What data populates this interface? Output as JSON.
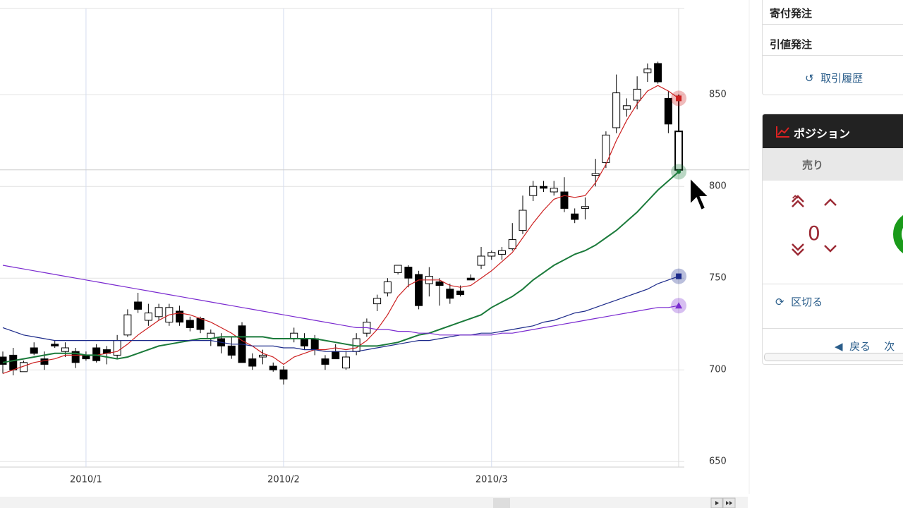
{
  "chart_data": {
    "type": "candlestick",
    "categories": [
      null,
      null,
      null,
      null,
      null,
      null,
      null,
      null,
      "2010/1",
      null,
      null,
      null,
      null,
      null,
      null,
      null,
      null,
      null,
      null,
      null,
      null,
      null,
      null,
      null,
      null,
      null,
      null,
      "2010/2",
      null,
      null,
      null,
      null,
      null,
      null,
      null,
      null,
      null,
      null,
      null,
      null,
      null,
      null,
      null,
      null,
      null,
      null,
      null,
      "2010/3",
      null,
      null,
      null,
      null,
      null,
      null,
      null,
      null,
      null,
      null,
      null,
      null,
      null,
      null,
      null,
      null,
      null,
      null
    ],
    "open": [
      707,
      708,
      699,
      712,
      706,
      714,
      710,
      710,
      708,
      712,
      711,
      708,
      719,
      737,
      727,
      729,
      726,
      732,
      727,
      728,
      717,
      717,
      713,
      724,
      706,
      707,
      702,
      700,
      717,
      717,
      717,
      706,
      710,
      701,
      710,
      720,
      736,
      742,
      753,
      756,
      752,
      747,
      748,
      744,
      743,
      750,
      757,
      762,
      763,
      766,
      776,
      795,
      800,
      797,
      797,
      785,
      788,
      806,
      813,
      832,
      842,
      847,
      862,
      867,
      848,
      809
    ],
    "high": [
      710,
      712,
      705,
      715,
      710,
      716,
      715,
      712,
      710,
      714,
      713,
      719,
      733,
      742,
      736,
      736,
      736,
      735,
      729,
      729,
      722,
      720,
      718,
      726,
      709,
      711,
      704,
      702,
      723,
      720,
      719,
      708,
      714,
      710,
      720,
      728,
      741,
      750,
      757,
      757,
      754,
      756,
      750,
      747,
      746,
      752,
      767,
      765,
      767,
      780,
      795,
      803,
      803,
      803,
      805,
      788,
      794,
      815,
      830,
      861,
      848,
      860,
      867,
      868,
      852,
      850
    ],
    "low": [
      698,
      697,
      699,
      708,
      700,
      712,
      707,
      701,
      705,
      704,
      703,
      706,
      718,
      731,
      724,
      727,
      724,
      724,
      721,
      720,
      713,
      709,
      706,
      704,
      700,
      703,
      699,
      692,
      715,
      711,
      708,
      700,
      706,
      700,
      708,
      718,
      732,
      740,
      752,
      745,
      733,
      740,
      735,
      736,
      740,
      749,
      755,
      760,
      760,
      765,
      774,
      792,
      797,
      795,
      786,
      780,
      782,
      800,
      810,
      829,
      838,
      842,
      857,
      856,
      829,
      808
    ],
    "close": [
      703,
      700,
      704,
      709,
      703,
      713,
      712,
      704,
      706,
      705,
      709,
      716,
      730,
      733,
      731,
      734,
      734,
      726,
      723,
      722,
      720,
      713,
      708,
      704,
      702,
      708,
      700,
      695,
      720,
      713,
      711,
      703,
      706,
      707,
      717,
      726,
      739,
      748,
      757,
      750,
      735,
      751,
      746,
      739,
      741,
      749,
      762,
      764,
      765,
      771,
      787,
      800,
      799,
      799,
      788,
      782,
      789,
      807,
      828,
      851,
      844,
      853,
      864,
      857,
      834,
      830
    ],
    "up_color": "#ffffff",
    "down_color": "#000000",
    "overlays": [
      {
        "color": "#cc1f1f",
        "marker": "square",
        "values": [
          698,
          700,
          702,
          704,
          705,
          706,
          708,
          708,
          708,
          708,
          709,
          710,
          714,
          719,
          723,
          727,
          730,
          731,
          730,
          728,
          726,
          723,
          720,
          716,
          713,
          709,
          707,
          703,
          707,
          709,
          711,
          711,
          712,
          711,
          712,
          716,
          722,
          730,
          740,
          746,
          749,
          749,
          749,
          746,
          745,
          746,
          750,
          754,
          759,
          764,
          772,
          780,
          787,
          793,
          795,
          794,
          795,
          802,
          812,
          825,
          836,
          845,
          852,
          855,
          852,
          848
        ]
      },
      {
        "color": "#1a7a3a",
        "marker": "circle",
        "values": [
          704,
          705,
          706,
          707,
          708,
          709,
          709,
          709,
          708,
          708,
          707,
          706,
          707,
          709,
          711,
          713,
          714,
          715,
          716,
          717,
          717,
          718,
          718,
          718,
          718,
          718,
          717,
          717,
          717,
          717,
          717,
          716,
          715,
          714,
          713,
          713,
          713,
          714,
          715,
          717,
          719,
          720,
          722,
          724,
          726,
          728,
          730,
          734,
          737,
          740,
          744,
          749,
          753,
          757,
          760,
          763,
          765,
          768,
          772,
          776,
          781,
          786,
          792,
          798,
          803,
          808
        ]
      },
      {
        "color": "#1c2a8a",
        "marker": "square",
        "values": [
          723,
          721,
          719,
          718,
          717,
          716,
          716,
          716,
          716,
          716,
          716,
          716,
          716,
          716,
          716,
          716,
          716,
          716,
          716,
          716,
          716,
          715,
          714,
          714,
          713,
          713,
          713,
          712,
          712,
          711,
          711,
          710,
          710,
          710,
          710,
          711,
          712,
          713,
          714,
          715,
          716,
          716,
          717,
          718,
          719,
          719,
          720,
          720,
          721,
          722,
          723,
          724,
          726,
          727,
          729,
          731,
          732,
          734,
          736,
          738,
          740,
          742,
          744,
          747,
          749,
          751
        ]
      },
      {
        "color": "#7a2ad0",
        "marker": "triangle",
        "values": [
          757,
          756,
          755,
          754,
          753,
          752,
          751,
          750,
          749,
          748,
          747,
          746,
          745,
          744,
          743,
          742,
          741,
          740,
          739,
          738,
          737,
          736,
          735,
          734,
          733,
          732,
          731,
          730,
          729,
          728,
          727,
          726,
          725,
          724,
          723,
          723,
          722,
          722,
          721,
          721,
          720,
          720,
          719,
          719,
          719,
          719,
          719,
          719,
          720,
          720,
          721,
          722,
          723,
          724,
          725,
          726,
          727,
          728,
          729,
          730,
          731,
          732,
          733,
          734,
          734,
          735
        ]
      }
    ],
    "price_line": 809,
    "ylim": [
      647,
      897
    ],
    "yticks": [
      650,
      700,
      750,
      800,
      850
    ],
    "grid": true
  },
  "panel": {
    "order_items": [
      "寄付発注",
      "引値発注"
    ],
    "history": "取引履歴",
    "position_title": "ポジション",
    "side": "売り",
    "quantity": 0,
    "split": "区切る",
    "back": "戻る",
    "next": "次"
  }
}
